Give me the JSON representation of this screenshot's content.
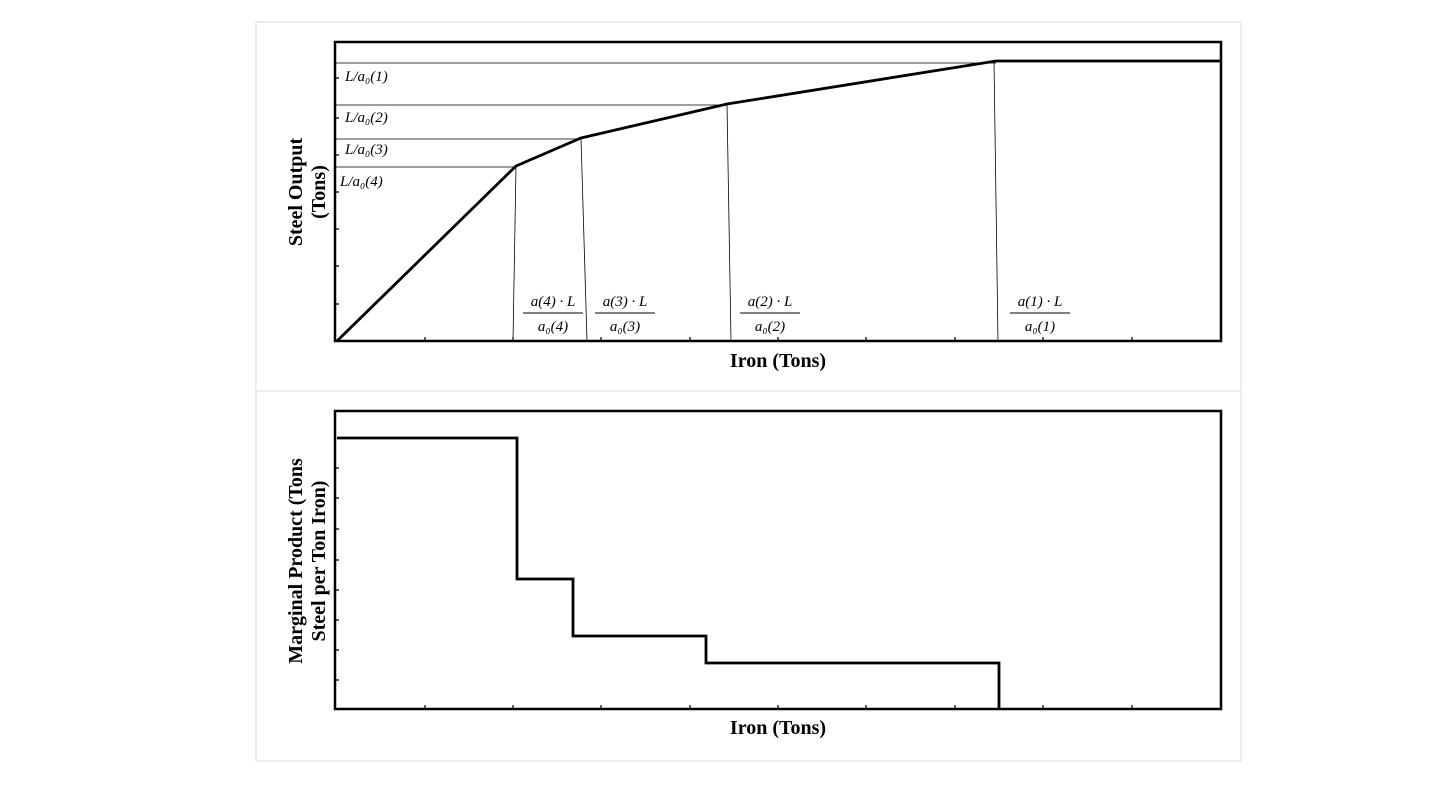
{
  "top_chart": {
    "y_label_lines": [
      "Steel Output",
      "(Tons)"
    ],
    "x_label": "Iron (Tons)",
    "level_labels": [
      "L/a₀(1)",
      "L/a₀(2)",
      "L/a₀(3)",
      "L/a₀(4)"
    ],
    "iron_labels": [
      {
        "numerator": "a(4) · L",
        "denominator": "a₀(4)"
      },
      {
        "numerator": "a(3) · L",
        "denominator": "a₀(3)"
      },
      {
        "numerator": "a(2) · L",
        "denominator": "a₀(2)"
      },
      {
        "numerator": "a(1) · L",
        "denominator": "a₀(1)"
      }
    ]
  },
  "bottom_chart": {
    "y_label_lines": [
      "Marginal Product (Tons",
      "Steel per Ton Iron)"
    ],
    "x_label": "Iron (Tons)"
  }
}
